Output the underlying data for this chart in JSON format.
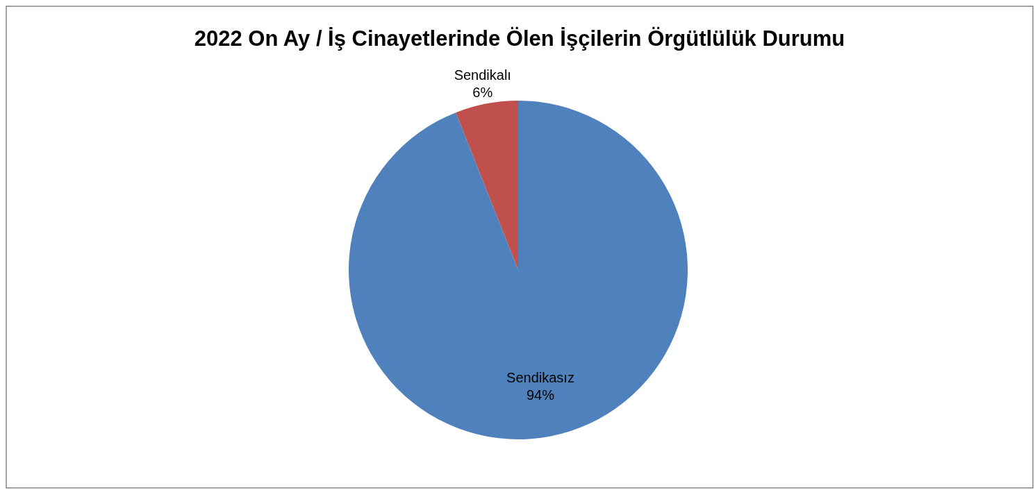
{
  "chart_data": {
    "type": "pie",
    "title": "2022 On Ay / İş Cinayetlerinde Ölen İşçilerin Örgütlülük Durumu",
    "categories": [
      "Sendikasız",
      "Sendikalı"
    ],
    "values": [
      94,
      6
    ],
    "value_labels": [
      "94%",
      "6%"
    ],
    "colors": [
      "#4f81bd",
      "#c0504d"
    ]
  }
}
